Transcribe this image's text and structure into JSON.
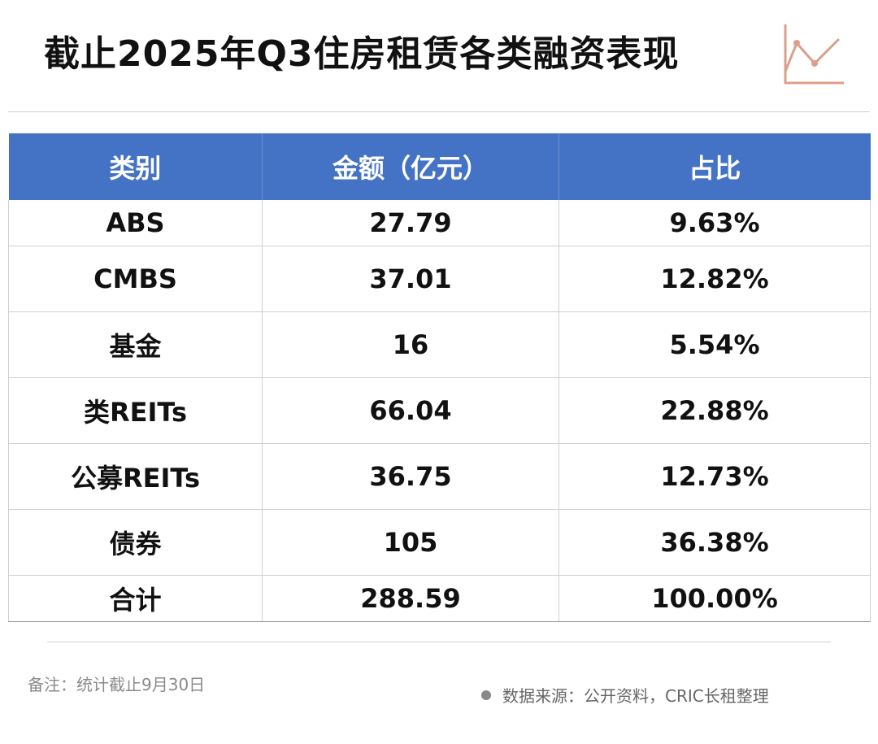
{
  "title": "截止2025年Q3住房租赁各类融资表现",
  "accent_color": "#4472c4",
  "icon_color": "#d9a08a",
  "header_icon": "line-chart-trend-icon",
  "chart_data": {
    "type": "table",
    "columns": [
      "类别",
      "金额（亿元）",
      "占比"
    ],
    "rows": [
      {
        "category": "ABS",
        "amount": "27.79",
        "share": "9.63%"
      },
      {
        "category": "CMBS",
        "amount": "37.01",
        "share": "12.82%"
      },
      {
        "category": "基金",
        "amount": "16",
        "share": "5.54%"
      },
      {
        "category": "类REITs",
        "amount": "66.04",
        "share": "22.88%"
      },
      {
        "category": "公募REITs",
        "amount": "36.75",
        "share": "12.73%"
      },
      {
        "category": "债券",
        "amount": "105",
        "share": "36.38%"
      }
    ],
    "total": {
      "category": "合计",
      "amount": "288.59",
      "share": "100.00%"
    }
  },
  "footer": {
    "note": "备注：统计截止9月30日",
    "source": "数据来源：公开资料，CRIC长租整理"
  }
}
